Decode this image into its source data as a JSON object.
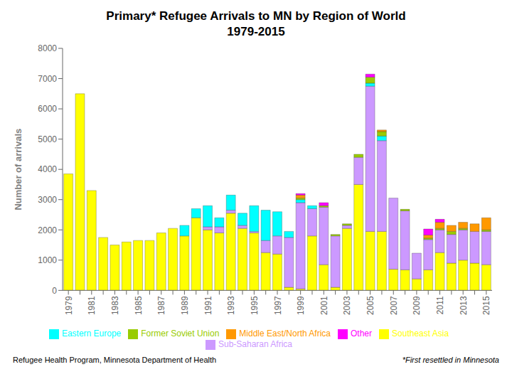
{
  "chart_data": {
    "type": "bar",
    "title": "Primary* Refugee Arrivals to MN by Region of World",
    "subtitle": "1979-2015",
    "ylabel": "Number of arrivals",
    "categories": [
      "1979",
      null,
      "1981",
      null,
      "1983",
      null,
      "1985",
      null,
      "1987",
      null,
      "1989",
      null,
      "1991",
      null,
      "1993",
      null,
      "1995",
      null,
      "1997",
      null,
      "1999",
      null,
      "2001",
      null,
      "2003",
      null,
      "2005",
      null,
      "2007",
      null,
      "2009",
      null,
      "2011",
      null,
      "2013",
      null,
      "2015"
    ],
    "series": [
      {
        "name": "Southeast Asia",
        "color": "#FFFF00",
        "values": [
          3850,
          6500,
          3300,
          1750,
          1500,
          1600,
          1650,
          1650,
          1900,
          2050,
          1800,
          2400,
          2000,
          1900,
          2550,
          2050,
          1900,
          1250,
          1200,
          100,
          50,
          1800,
          850,
          100,
          2050,
          3500,
          1950,
          1950,
          700,
          680,
          380,
          680,
          1250,
          900,
          1000,
          900,
          850
        ]
      },
      {
        "name": "Sub-Saharan Africa",
        "color": "#CC99FF",
        "values": [
          0,
          0,
          0,
          0,
          0,
          0,
          0,
          0,
          0,
          0,
          0,
          0,
          100,
          200,
          100,
          100,
          50,
          400,
          600,
          1650,
          2850,
          900,
          1900,
          1700,
          100,
          900,
          4800,
          3000,
          2350,
          1950,
          850,
          1000,
          750,
          950,
          1000,
          1050,
          1100
        ]
      },
      {
        "name": "Eastern Europe",
        "color": "#00FFFF",
        "values": [
          0,
          0,
          0,
          0,
          0,
          0,
          0,
          0,
          0,
          0,
          350,
          300,
          700,
          300,
          500,
          400,
          850,
          1000,
          800,
          200,
          100,
          100,
          0,
          0,
          0,
          0,
          100,
          150,
          0,
          0,
          0,
          0,
          0,
          0,
          0,
          0,
          0
        ]
      },
      {
        "name": "Former Soviet Union",
        "color": "#99CC00",
        "values": [
          0,
          0,
          0,
          0,
          0,
          0,
          0,
          0,
          0,
          0,
          0,
          0,
          0,
          0,
          0,
          0,
          0,
          0,
          0,
          0,
          50,
          0,
          50,
          50,
          50,
          100,
          200,
          150,
          0,
          50,
          0,
          50,
          50,
          100,
          50,
          0,
          50
        ]
      },
      {
        "name": "Middle East/North Africa",
        "color": "#FF9900",
        "values": [
          0,
          0,
          0,
          0,
          0,
          0,
          0,
          0,
          0,
          0,
          0,
          0,
          0,
          0,
          0,
          0,
          0,
          0,
          0,
          0,
          100,
          0,
          0,
          0,
          0,
          0,
          0,
          50,
          0,
          0,
          0,
          100,
          200,
          200,
          200,
          250,
          400
        ]
      },
      {
        "name": "Other",
        "color": "#FF00FF",
        "values": [
          0,
          0,
          0,
          0,
          0,
          0,
          0,
          0,
          0,
          0,
          0,
          0,
          0,
          0,
          0,
          0,
          0,
          0,
          0,
          0,
          50,
          0,
          100,
          0,
          0,
          0,
          100,
          0,
          0,
          0,
          0,
          200,
          100,
          0,
          0,
          0,
          0
        ]
      }
    ],
    "ylim": [
      0,
      8000
    ],
    "yticks": [
      0,
      1000,
      2000,
      3000,
      4000,
      5000,
      6000,
      7000,
      8000
    ],
    "stacked": true,
    "grid": false,
    "legend": "bottom",
    "annotations": [
      "Refugee Health Program, Minnesota Department of Health",
      "*First resettled in Minnesota"
    ]
  }
}
